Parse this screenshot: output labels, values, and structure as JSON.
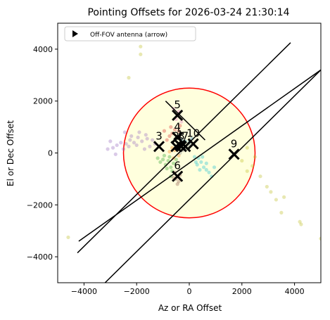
{
  "chart_data": {
    "type": "scatter",
    "title": "Pointing Offsets for 2026-03-24 21:30:14",
    "xlabel": "Az or RA Offset",
    "ylabel": "El or Dec Offset",
    "xlim": [
      -5000,
      5000
    ],
    "ylim": [
      -5000,
      5000
    ],
    "xticks": [
      -4000,
      -2000,
      0,
      2000,
      4000
    ],
    "yticks": [
      -4000,
      -2000,
      0,
      2000,
      4000
    ],
    "xtick_labels": [
      "−4000",
      "−2000",
      "0",
      "2000",
      "4000"
    ],
    "ytick_labels": [
      "−4000",
      "−2000",
      "0",
      "2000",
      "4000"
    ],
    "grid": false,
    "legend": {
      "placement": "top-left",
      "entries": [
        "Off-FOV antenna (arrow)"
      ]
    },
    "fov_circle": {
      "center": [
        0,
        0
      ],
      "radius": 2500,
      "color": "#ff0000",
      "fill": "#ffffdd"
    },
    "lines": [
      {
        "x": [
          -4250,
          3850
        ],
        "y": [
          -3850,
          4250
        ]
      },
      {
        "x": [
          -4200,
          5000
        ],
        "y": [
          -3400,
          3200
        ]
      },
      {
        "x": [
          -3200,
          5000
        ],
        "y": [
          -5000,
          3200
        ]
      },
      {
        "x": [
          -900,
          600
        ],
        "y": [
          2000,
          500
        ]
      }
    ],
    "antennas": [
      {
        "label": "1",
        "x": -350,
        "y": 300,
        "color": "#1f77b4"
      },
      {
        "label": "2",
        "x": -500,
        "y": 250,
        "color": "#ff7f0e"
      },
      {
        "label": "3",
        "x": -1150,
        "y": 250,
        "color": "#9467bd"
      },
      {
        "label": "4",
        "x": -450,
        "y": 600,
        "color": "#d62728"
      },
      {
        "label": "5",
        "x": -450,
        "y": 1450,
        "color": "#e377c2"
      },
      {
        "label": "6",
        "x": -450,
        "y": -900,
        "color": "#8c564b"
      },
      {
        "label": "7",
        "x": -150,
        "y": 250,
        "color": "#2ca02c"
      },
      {
        "label": "8",
        "x": -300,
        "y": 250,
        "color": "#7f7f7f"
      },
      {
        "label": "9",
        "x": 1700,
        "y": -50,
        "color": "#bcbd22"
      },
      {
        "label": "10",
        "x": 150,
        "y": 350,
        "color": "#17becf"
      }
    ],
    "scatter_points": [
      {
        "color": "#9467bd",
        "points": [
          [
            -1400,
            500
          ],
          [
            -1600,
            550
          ],
          [
            -1800,
            450
          ],
          [
            -1950,
            600
          ],
          [
            -2100,
            400
          ],
          [
            -2250,
            500
          ],
          [
            -2400,
            350
          ],
          [
            -2600,
            400
          ],
          [
            -2750,
            300
          ],
          [
            -2900,
            200
          ],
          [
            -3000,
            450
          ],
          [
            -1300,
            350
          ],
          [
            -1500,
            250
          ],
          [
            -1700,
            150
          ],
          [
            -2000,
            300
          ],
          [
            -2300,
            250
          ],
          [
            -2500,
            150
          ],
          [
            -2200,
            650
          ],
          [
            -1900,
            800
          ],
          [
            -1650,
            700
          ],
          [
            -2800,
            -50
          ],
          [
            -2450,
            800
          ],
          [
            -3100,
            150
          ]
        ]
      },
      {
        "color": "#2ca02c",
        "points": [
          [
            -800,
            -300
          ],
          [
            -900,
            -450
          ],
          [
            -700,
            -550
          ],
          [
            -1000,
            -250
          ],
          [
            -850,
            -600
          ],
          [
            -600,
            -400
          ],
          [
            -750,
            -150
          ],
          [
            -950,
            -100
          ],
          [
            -650,
            -700
          ],
          [
            -1100,
            -350
          ],
          [
            -500,
            -250
          ],
          [
            -1200,
            -200
          ],
          [
            -700,
            -900
          ]
        ]
      },
      {
        "color": "#17becf",
        "points": [
          [
            350,
            -200
          ],
          [
            450,
            -350
          ],
          [
            550,
            -550
          ],
          [
            650,
            -650
          ],
          [
            300,
            -450
          ],
          [
            750,
            -750
          ],
          [
            200,
            -150
          ],
          [
            850,
            -900
          ],
          [
            500,
            -150
          ],
          [
            400,
            -650
          ],
          [
            650,
            -400
          ],
          [
            950,
            -550
          ],
          [
            250,
            -350
          ]
        ]
      },
      {
        "color": "#bcbd22",
        "points": [
          [
            2000,
            -300
          ],
          [
            2400,
            -500
          ],
          [
            2700,
            -900
          ],
          [
            2950,
            -1300
          ],
          [
            3100,
            -1500
          ],
          [
            3300,
            -1800
          ],
          [
            3600,
            -1700
          ],
          [
            3500,
            -2300
          ],
          [
            4200,
            -2650
          ],
          [
            4250,
            -2750
          ],
          [
            5000,
            -3300
          ],
          [
            2500,
            -150
          ],
          [
            2200,
            -700
          ],
          [
            -1850,
            4100
          ],
          [
            -1850,
            3800
          ],
          [
            -2300,
            2900
          ],
          [
            2200,
            200
          ],
          [
            -4600,
            -3250
          ]
        ]
      },
      {
        "color": "#d62728",
        "points": [
          [
            -650,
            750
          ],
          [
            -550,
            900
          ],
          [
            -750,
            650
          ],
          [
            -400,
            850
          ],
          [
            -850,
            500
          ],
          [
            -700,
            1000
          ],
          [
            -350,
            1050
          ],
          [
            -950,
            850
          ]
        ]
      },
      {
        "color": "#ff7f0e",
        "points": [
          [
            -550,
            100
          ],
          [
            -650,
            200
          ],
          [
            -400,
            -100
          ],
          [
            -750,
            50
          ],
          [
            -600,
            -200
          ]
        ]
      },
      {
        "color": "#8c564b",
        "points": [
          [
            -500,
            -1000
          ],
          [
            -400,
            -1100
          ],
          [
            -550,
            -750
          ],
          [
            -350,
            -850
          ],
          [
            -450,
            -1200
          ],
          [
            -600,
            -950
          ]
        ]
      },
      {
        "color": "#e377c2",
        "points": [
          [
            -500,
            1300
          ],
          [
            -400,
            1600
          ],
          [
            -300,
            1200
          ],
          [
            -600,
            1700
          ]
        ]
      },
      {
        "color": "#7f7f7f",
        "points": [
          [
            -250,
            100
          ],
          [
            -100,
            200
          ],
          [
            -350,
            0
          ],
          [
            0,
            300
          ]
        ]
      },
      {
        "color": "#1f77b4",
        "points": [
          [
            -150,
            450
          ],
          [
            -300,
            500
          ],
          [
            0,
            400
          ],
          [
            100,
            550
          ]
        ]
      }
    ]
  }
}
